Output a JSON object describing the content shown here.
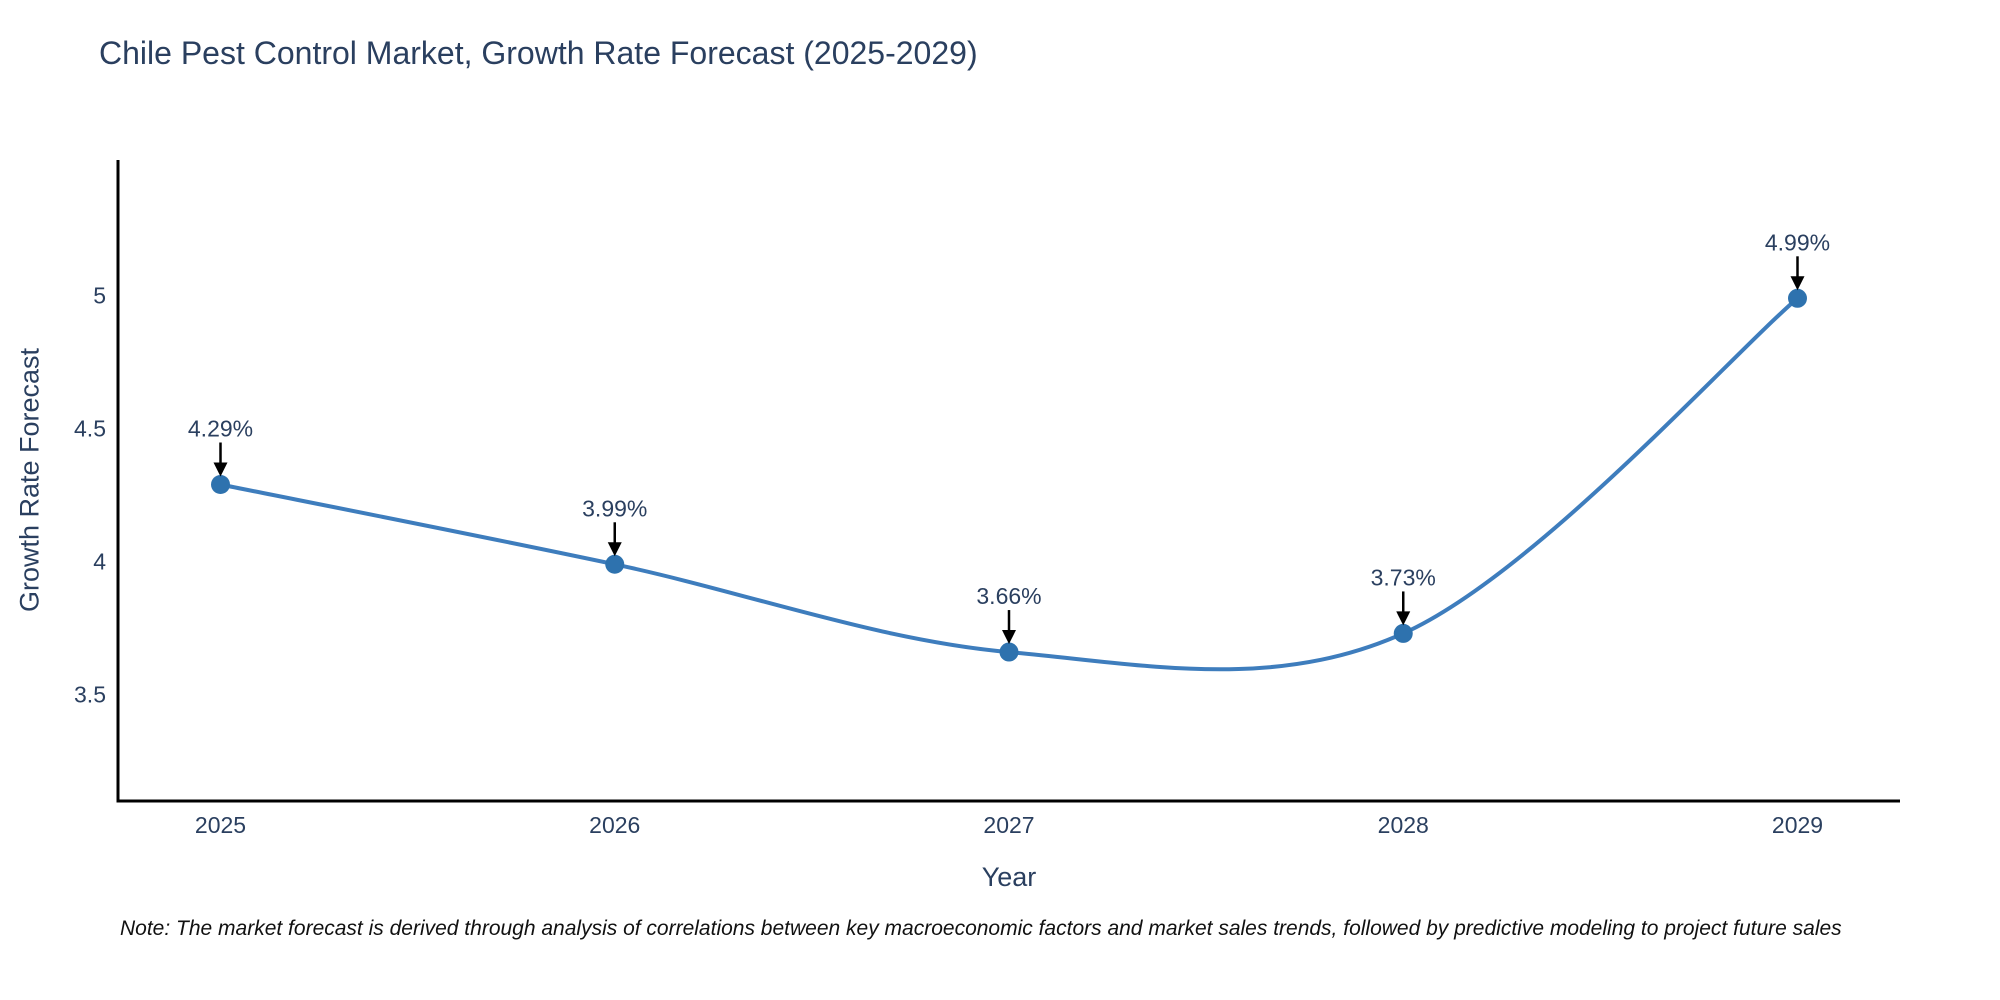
{
  "chart_data": {
    "type": "line",
    "title": "Chile Pest Control Market, Growth Rate Forecast (2025-2029)",
    "xlabel": "Year",
    "ylabel": "Growth Rate Forecast",
    "x": [
      2025,
      2026,
      2027,
      2028,
      2029
    ],
    "values": [
      4.29,
      3.99,
      3.66,
      3.73,
      4.99
    ],
    "point_labels": [
      "4.29%",
      "3.99%",
      "3.66%",
      "3.73%",
      "4.99%"
    ],
    "xticks": [
      "2025",
      "2026",
      "2027",
      "2028",
      "2029"
    ],
    "yticks": [
      3.5,
      4,
      4.5,
      5
    ],
    "xlim": [
      2024.74,
      2029.26
    ],
    "ylim": [
      3.1,
      5.51
    ],
    "line_shape": "spline",
    "grid": false,
    "legend": "none",
    "colors": {
      "line": "#3e7dbd",
      "marker": "#2e72ae",
      "axis": "#000000",
      "text": "#2a3f5f",
      "arrow": "#000000"
    }
  },
  "note": {
    "text": "Note: The market forecast is derived through analysis of correlations between key macroeconomic factors and market sales trends, followed by predictive modeling to project future sales"
  }
}
